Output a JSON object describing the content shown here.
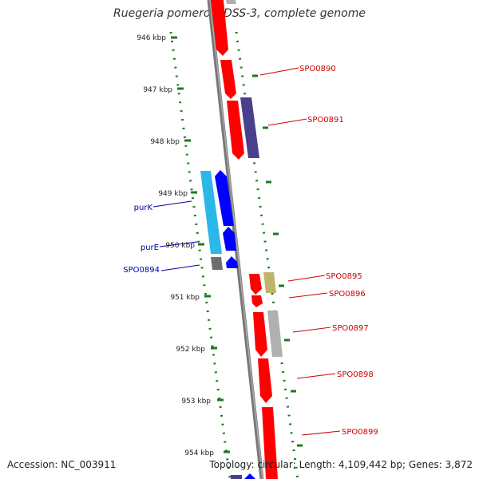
{
  "title": "Ruegeria pomeroyi DSS-3, complete genome",
  "accession": "Accession: NC_003911",
  "topology": "Topology: circular; Length: 4,109,442 bp; Genes: 3,872",
  "colors": {
    "backbone": "#777777",
    "ticks": "#1d7a1d",
    "forward_gene": "#ff0000",
    "reverse_gene": "#0000ff",
    "forward_label": "#cc0000",
    "reverse_label": "#0000aa",
    "cds_blue": "#4a3f8c",
    "cds_cyan": "#2bb7e8",
    "cds_olive": "#bdb56a",
    "cds_grey": "#b0b0b0",
    "cds_darkgrey": "#6e6e6e"
  },
  "scale_ticks": [
    "946 kbp",
    "947 kbp",
    "948 kbp",
    "949 kbp",
    "950 kbp",
    "951 kbp",
    "952 kbp",
    "953 kbp",
    "954 kbp"
  ],
  "forward_labels": [
    "SPO0890",
    "SPO0891",
    "SPO0895",
    "SPO0896",
    "SPO0897",
    "SPO0898",
    "SPO0899"
  ],
  "reverse_labels": [
    "purK",
    "purE",
    "SPO0894"
  ]
}
